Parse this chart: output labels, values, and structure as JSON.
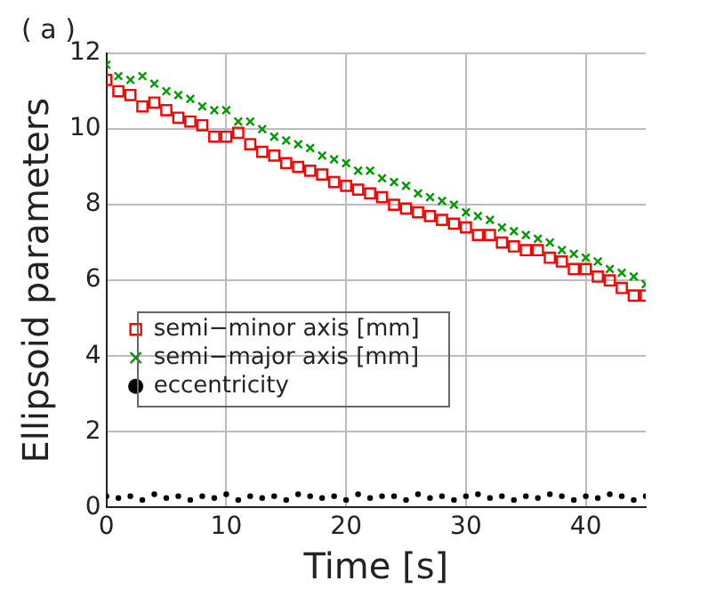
{
  "chart_data": {
    "type": "scatter",
    "xlabel": "Time [s]",
    "ylabel": "Ellipsoid parameters",
    "annotations": [
      "( a )"
    ],
    "x": [
      0,
      1,
      2,
      3,
      4,
      5,
      6,
      7,
      8,
      9,
      10,
      11,
      12,
      13,
      14,
      15,
      16,
      17,
      18,
      19,
      20,
      21,
      22,
      23,
      24,
      25,
      26,
      27,
      28,
      29,
      30,
      31,
      32,
      33,
      34,
      35,
      36,
      37,
      38,
      39,
      40,
      41,
      42,
      43,
      44,
      45
    ],
    "series": [
      {
        "name": "semi−minor axis [mm]",
        "color": "#ff0000",
        "marker": "square",
        "values": [
          11.3,
          11.0,
          10.9,
          10.6,
          10.7,
          10.5,
          10.3,
          10.2,
          10.1,
          9.8,
          9.8,
          9.9,
          9.6,
          9.4,
          9.3,
          9.1,
          9.0,
          8.9,
          8.8,
          8.6,
          8.5,
          8.4,
          8.3,
          8.2,
          8.0,
          7.9,
          7.8,
          7.7,
          7.6,
          7.5,
          7.4,
          7.2,
          7.2,
          7.0,
          6.9,
          6.8,
          6.8,
          6.6,
          6.5,
          6.3,
          6.3,
          6.1,
          6.0,
          5.8,
          5.6,
          5.6
        ]
      },
      {
        "name": "semi−major axis [mm]",
        "color": "#009900",
        "marker": "cross",
        "values": [
          11.7,
          11.4,
          11.3,
          11.4,
          11.2,
          11.0,
          10.9,
          10.8,
          10.6,
          10.5,
          10.5,
          10.2,
          10.2,
          10.0,
          9.8,
          9.7,
          9.6,
          9.5,
          9.3,
          9.2,
          9.1,
          8.9,
          8.9,
          8.7,
          8.6,
          8.5,
          8.3,
          8.2,
          8.1,
          8.0,
          7.8,
          7.7,
          7.6,
          7.4,
          7.3,
          7.2,
          7.1,
          7.0,
          6.8,
          6.7,
          6.6,
          6.5,
          6.3,
          6.2,
          6.1,
          5.9
        ]
      },
      {
        "name": "eccentricity",
        "color": "#000000",
        "marker": "circle",
        "values": [
          0.3,
          0.25,
          0.3,
          0.2,
          0.35,
          0.25,
          0.3,
          0.2,
          0.3,
          0.25,
          0.35,
          0.2,
          0.3,
          0.25,
          0.3,
          0.2,
          0.35,
          0.3,
          0.25,
          0.3,
          0.2,
          0.35,
          0.25,
          0.3,
          0.3,
          0.2,
          0.35,
          0.25,
          0.3,
          0.2,
          0.3,
          0.35,
          0.25,
          0.3,
          0.2,
          0.3,
          0.25,
          0.35,
          0.3,
          0.2,
          0.3,
          0.25,
          0.35,
          0.3,
          0.2,
          0.3
        ]
      }
    ],
    "xlim": [
      0,
      45
    ],
    "xticks": [
      0,
      10,
      20,
      30,
      40
    ],
    "ylim": [
      0,
      12
    ],
    "yticks": [
      0,
      2,
      4,
      6,
      8,
      10,
      12
    ],
    "grid": true,
    "legend": "left"
  }
}
